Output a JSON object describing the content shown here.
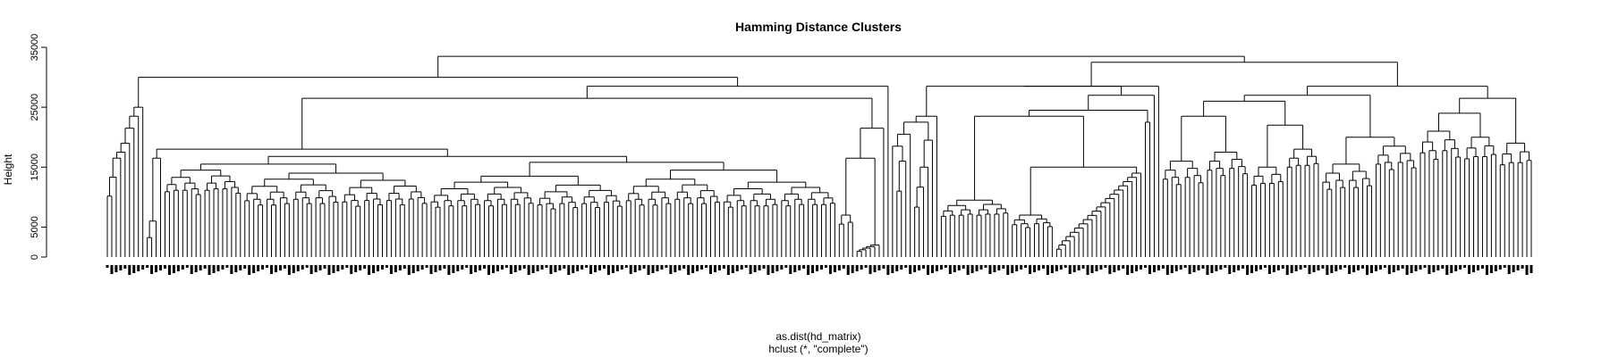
{
  "chart_data": {
    "type": "dendrogram",
    "title": "Hamming Distance Clusters",
    "ylabel": "Height",
    "xlabel": "as.dist(hd_matrix)",
    "sub": "hclust (*, \"complete\")",
    "y_ticks": [
      0,
      5000,
      15000,
      25000,
      35000
    ],
    "ylim": [
      0,
      35000
    ],
    "grid": false,
    "leaf_labels_note": "leaf labels are illegible in source",
    "top_merges": [
      {
        "name": "root",
        "height": 33500
      },
      {
        "name": "left-main",
        "height": 30000
      },
      {
        "name": "right-main",
        "height": 32500
      },
      {
        "name": "left-sub",
        "height": 28500
      },
      {
        "name": "right-sub-left",
        "height": 28500
      },
      {
        "name": "right-sub-right",
        "height": 28500
      }
    ]
  }
}
